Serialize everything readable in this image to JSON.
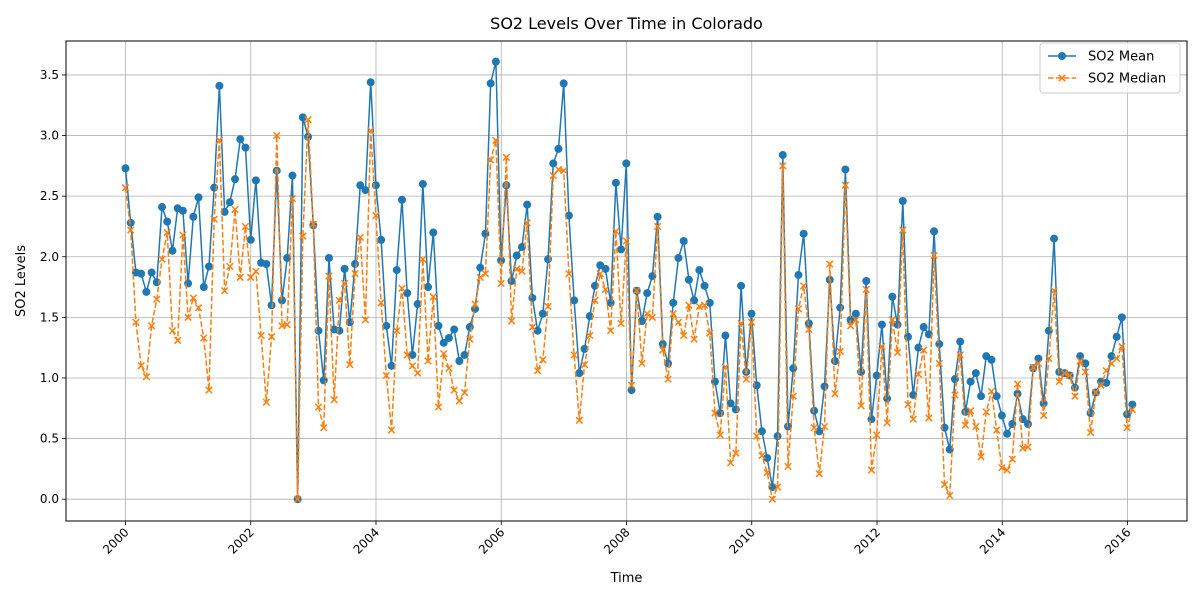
{
  "chart_data": {
    "type": "line",
    "title": "SO2 Levels Over Time in Colorado",
    "xlabel": "Time",
    "ylabel": "SO2 Levels",
    "x_range": [
      1999.05,
      2016.95
    ],
    "x_ticks": [
      2000,
      2002,
      2004,
      2006,
      2008,
      2010,
      2012,
      2014,
      2016
    ],
    "ylim": [
      -0.18,
      3.78
    ],
    "y_ticks": [
      0.0,
      0.5,
      1.0,
      1.5,
      2.0,
      2.5,
      3.0,
      3.5
    ],
    "y_tick_labels": [
      "0.0",
      "0.5",
      "1.0",
      "1.5",
      "2.0",
      "2.5",
      "3.0",
      "3.5"
    ],
    "grid": true,
    "legend_position": "top-right",
    "x_start": 2000.0,
    "x_step": 0.0833,
    "series": [
      {
        "name": "SO2 Mean",
        "color": "#1f77b4",
        "marker": "circle",
        "line_style": "solid",
        "values": [
          2.73,
          2.28,
          1.87,
          1.86,
          1.71,
          1.87,
          1.79,
          2.41,
          2.29,
          2.05,
          2.4,
          2.38,
          1.78,
          2.33,
          2.49,
          1.75,
          1.92,
          2.57,
          3.41,
          2.37,
          2.45,
          2.64,
          2.97,
          2.9,
          2.14,
          2.63,
          1.95,
          1.94,
          1.6,
          2.71,
          1.64,
          1.99,
          2.67,
          0.0,
          3.15,
          2.99,
          2.26,
          1.39,
          0.98,
          1.99,
          1.4,
          1.39,
          1.9,
          1.46,
          1.94,
          2.59,
          2.55,
          3.44,
          2.59,
          2.14,
          1.43,
          1.1,
          1.89,
          2.47,
          1.7,
          1.19,
          1.61,
          2.6,
          1.75,
          2.2,
          1.43,
          1.29,
          1.33,
          1.4,
          1.14,
          1.19,
          1.42,
          1.57,
          1.91,
          2.19,
          3.43,
          3.61,
          1.97,
          2.59,
          1.8,
          2.01,
          2.08,
          2.43,
          1.66,
          1.39,
          1.53,
          1.98,
          2.77,
          2.89,
          3.43,
          2.34,
          1.64,
          1.04,
          1.24,
          1.51,
          1.76,
          1.93,
          1.9,
          1.62,
          2.61,
          2.06,
          2.77,
          0.9,
          1.72,
          1.47,
          1.7,
          1.84,
          2.33,
          1.28,
          1.12,
          1.62,
          1.99,
          2.13,
          1.81,
          1.64,
          1.89,
          1.76,
          1.62,
          0.97,
          0.71,
          1.35,
          0.79,
          0.74,
          1.76,
          1.05,
          1.53,
          0.94,
          0.56,
          0.34,
          0.1,
          0.52,
          2.84,
          0.6,
          1.08,
          1.85,
          2.19,
          1.45,
          0.73,
          0.56,
          0.93,
          1.81,
          1.14,
          1.58,
          2.72,
          1.48,
          1.53,
          1.05,
          1.8,
          0.66,
          1.02,
          1.44,
          0.83,
          1.67,
          1.44,
          2.46,
          1.34,
          0.86,
          1.25,
          1.42,
          1.36,
          2.21,
          1.28,
          0.59,
          0.41,
          0.99,
          1.3,
          0.72,
          0.97,
          1.04,
          0.85,
          1.18,
          1.15,
          0.85,
          0.69,
          0.54,
          0.62,
          0.87,
          0.66,
          0.62,
          1.08,
          1.16,
          0.79,
          1.39,
          2.15,
          1.05,
          1.04,
          1.02,
          0.92,
          1.18,
          1.12,
          0.71,
          0.88,
          0.97,
          0.96,
          1.18,
          1.34,
          1.5,
          0.7,
          0.78
        ]
      },
      {
        "name": "SO2 Median",
        "color": "#ff7f0e",
        "marker": "x",
        "line_style": "dashed",
        "values": [
          2.57,
          2.22,
          1.46,
          1.1,
          1.01,
          1.43,
          1.65,
          1.98,
          2.2,
          1.39,
          1.31,
          2.18,
          1.5,
          1.66,
          1.58,
          1.33,
          0.9,
          2.31,
          2.96,
          1.72,
          1.92,
          2.39,
          1.83,
          2.25,
          1.83,
          1.88,
          1.35,
          0.8,
          1.34,
          3.0,
          1.43,
          1.44,
          2.48,
          0.0,
          2.17,
          3.13,
          2.27,
          0.76,
          0.59,
          1.84,
          0.82,
          1.64,
          1.78,
          1.11,
          1.86,
          2.16,
          1.48,
          3.04,
          2.34,
          1.62,
          1.02,
          0.57,
          1.39,
          1.74,
          1.19,
          1.1,
          1.04,
          1.98,
          1.14,
          1.67,
          0.76,
          1.2,
          1.08,
          0.9,
          0.81,
          0.88,
          1.32,
          1.61,
          1.83,
          1.86,
          2.8,
          2.96,
          1.78,
          2.82,
          1.47,
          1.9,
          1.88,
          2.28,
          1.42,
          1.06,
          1.15,
          1.59,
          2.67,
          2.72,
          2.71,
          1.86,
          1.19,
          0.65,
          1.11,
          1.35,
          1.64,
          1.86,
          1.73,
          1.39,
          2.21,
          1.45,
          2.13,
          0.94,
          1.72,
          1.12,
          1.53,
          1.5,
          2.25,
          1.23,
          0.99,
          1.53,
          1.46,
          1.35,
          1.6,
          1.32,
          1.59,
          1.6,
          1.37,
          0.71,
          0.53,
          1.09,
          0.3,
          0.38,
          1.45,
          0.99,
          1.46,
          0.52,
          0.36,
          0.22,
          0.0,
          0.1,
          2.75,
          0.27,
          0.85,
          1.57,
          1.76,
          1.4,
          0.59,
          0.21,
          0.6,
          1.94,
          0.87,
          1.22,
          2.59,
          1.43,
          1.48,
          0.77,
          1.73,
          0.24,
          0.53,
          1.26,
          0.63,
          1.48,
          1.21,
          2.22,
          0.78,
          0.66,
          1.03,
          1.23,
          0.67,
          2.01,
          1.12,
          0.12,
          0.03,
          0.86,
          1.19,
          0.61,
          0.73,
          0.6,
          0.35,
          0.72,
          0.89,
          0.57,
          0.26,
          0.24,
          0.33,
          0.95,
          0.42,
          0.43,
          1.09,
          1.12,
          0.69,
          1.16,
          1.72,
          0.97,
          1.04,
          1.02,
          0.85,
          1.14,
          1.05,
          0.55,
          0.88,
          0.94,
          1.06,
          1.12,
          1.16,
          1.26,
          0.59,
          0.74
        ]
      }
    ]
  }
}
